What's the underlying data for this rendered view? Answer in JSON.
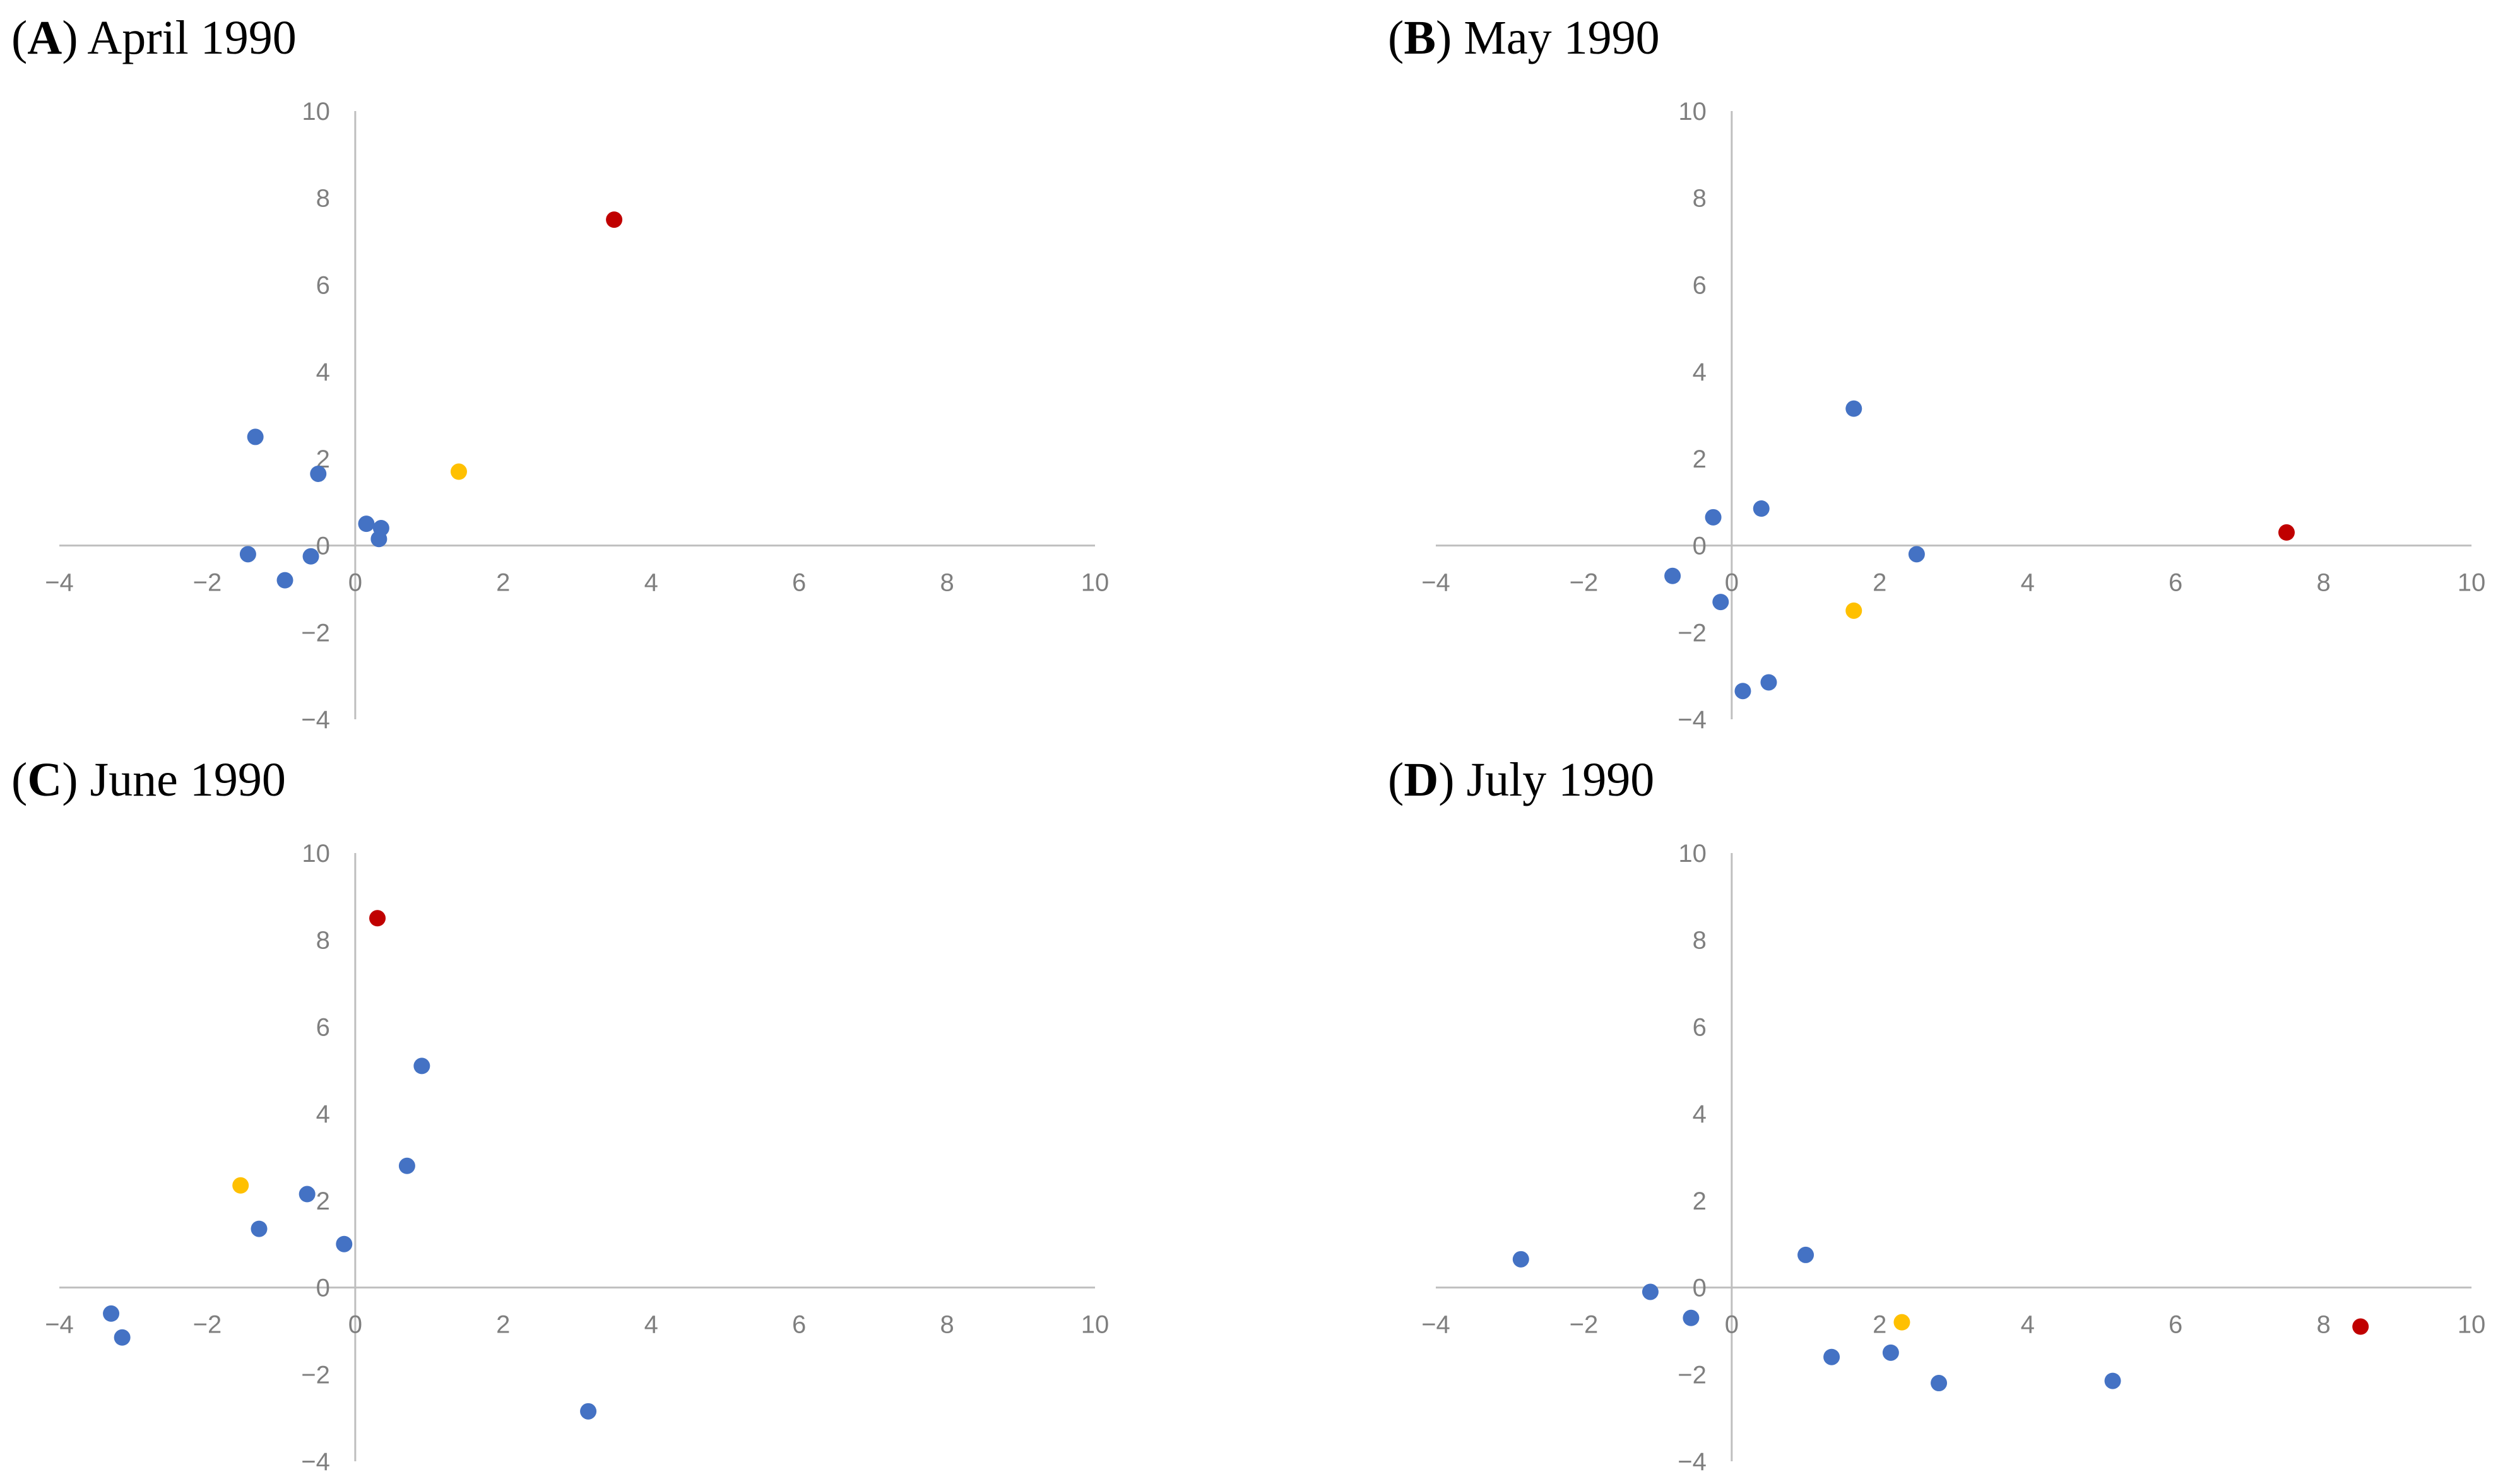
{
  "colors": {
    "axis": "#bfbfbf",
    "tick_text": "#7f7f7f",
    "blue": "#4472c4",
    "yellow": "#ffc000",
    "red": "#c00000"
  },
  "chart_data": [
    {
      "type": "scatter",
      "title_letter": "A",
      "title_rest": "April 1990",
      "xlim": [
        -4,
        10
      ],
      "ylim": [
        -4,
        10
      ],
      "x_ticks": [
        "−4",
        "−2",
        "0",
        "2",
        "4",
        "6",
        "8",
        "10"
      ],
      "y_ticks": [
        "−4",
        "−2",
        "0",
        "2",
        "4",
        "6",
        "8",
        "10"
      ],
      "grid": false,
      "points": [
        {
          "x": 3.5,
          "y": 7.5,
          "color": "red"
        },
        {
          "x": 1.4,
          "y": 1.7,
          "color": "yellow"
        },
        {
          "x": -1.35,
          "y": 2.5,
          "color": "blue"
        },
        {
          "x": -0.5,
          "y": 1.65,
          "color": "blue"
        },
        {
          "x": 0.15,
          "y": 0.5,
          "color": "blue"
        },
        {
          "x": 0.35,
          "y": 0.4,
          "color": "blue"
        },
        {
          "x": 0.32,
          "y": 0.15,
          "color": "blue"
        },
        {
          "x": -1.45,
          "y": -0.2,
          "color": "blue"
        },
        {
          "x": -0.6,
          "y": -0.25,
          "color": "blue"
        },
        {
          "x": -0.95,
          "y": -0.8,
          "color": "blue"
        }
      ]
    },
    {
      "type": "scatter",
      "title_letter": "B",
      "title_rest": "May 1990",
      "xlim": [
        -4,
        10
      ],
      "ylim": [
        -4,
        10
      ],
      "x_ticks": [
        "−4",
        "−2",
        "0",
        "2",
        "4",
        "6",
        "8",
        "10"
      ],
      "y_ticks": [
        "−4",
        "−2",
        "0",
        "2",
        "4",
        "6",
        "8",
        "10"
      ],
      "grid": false,
      "points": [
        {
          "x": 7.5,
          "y": 0.3,
          "color": "red"
        },
        {
          "x": 1.65,
          "y": -1.5,
          "color": "yellow"
        },
        {
          "x": 1.65,
          "y": 3.15,
          "color": "blue"
        },
        {
          "x": 0.4,
          "y": 0.85,
          "color": "blue"
        },
        {
          "x": -0.25,
          "y": 0.65,
          "color": "blue"
        },
        {
          "x": 2.5,
          "y": -0.2,
          "color": "blue"
        },
        {
          "x": -0.8,
          "y": -0.7,
          "color": "blue"
        },
        {
          "x": -0.15,
          "y": -1.3,
          "color": "blue"
        },
        {
          "x": 0.5,
          "y": -3.15,
          "color": "blue"
        },
        {
          "x": 0.15,
          "y": -3.35,
          "color": "blue"
        }
      ]
    },
    {
      "type": "scatter",
      "title_letter": "C",
      "title_rest": "June 1990",
      "xlim": [
        -4,
        10
      ],
      "ylim": [
        -4,
        10
      ],
      "x_ticks": [
        "−4",
        "−2",
        "0",
        "2",
        "4",
        "6",
        "8",
        "10"
      ],
      "y_ticks": [
        "−4",
        "−2",
        "0",
        "2",
        "4",
        "6",
        "8",
        "10"
      ],
      "grid": false,
      "points": [
        {
          "x": 0.3,
          "y": 8.5,
          "color": "red"
        },
        {
          "x": -1.55,
          "y": 2.35,
          "color": "yellow"
        },
        {
          "x": 0.9,
          "y": 5.1,
          "color": "blue"
        },
        {
          "x": 0.7,
          "y": 2.8,
          "color": "blue"
        },
        {
          "x": -0.65,
          "y": 2.15,
          "color": "blue"
        },
        {
          "x": -1.3,
          "y": 1.35,
          "color": "blue"
        },
        {
          "x": -0.15,
          "y": 1.0,
          "color": "blue"
        },
        {
          "x": -3.3,
          "y": -0.6,
          "color": "blue"
        },
        {
          "x": -3.15,
          "y": -1.15,
          "color": "blue"
        },
        {
          "x": 3.15,
          "y": -2.85,
          "color": "blue"
        }
      ]
    },
    {
      "type": "scatter",
      "title_letter": "D",
      "title_rest": "July 1990",
      "xlim": [
        -4,
        10
      ],
      "ylim": [
        -4,
        10
      ],
      "x_ticks": [
        "−4",
        "−2",
        "0",
        "2",
        "4",
        "6",
        "8",
        "10"
      ],
      "y_ticks": [
        "−4",
        "−2",
        "0",
        "2",
        "4",
        "6",
        "8",
        "10"
      ],
      "grid": false,
      "points": [
        {
          "x": 8.5,
          "y": -0.9,
          "color": "red"
        },
        {
          "x": 2.3,
          "y": -0.8,
          "color": "yellow"
        },
        {
          "x": -2.85,
          "y": 0.65,
          "color": "blue"
        },
        {
          "x": -1.1,
          "y": -0.1,
          "color": "blue"
        },
        {
          "x": -0.55,
          "y": -0.7,
          "color": "blue"
        },
        {
          "x": 1.0,
          "y": 0.75,
          "color": "blue"
        },
        {
          "x": 1.35,
          "y": -1.6,
          "color": "blue"
        },
        {
          "x": 2.15,
          "y": -1.5,
          "color": "blue"
        },
        {
          "x": 2.8,
          "y": -2.2,
          "color": "blue"
        },
        {
          "x": 5.15,
          "y": -2.15,
          "color": "blue"
        }
      ]
    }
  ]
}
